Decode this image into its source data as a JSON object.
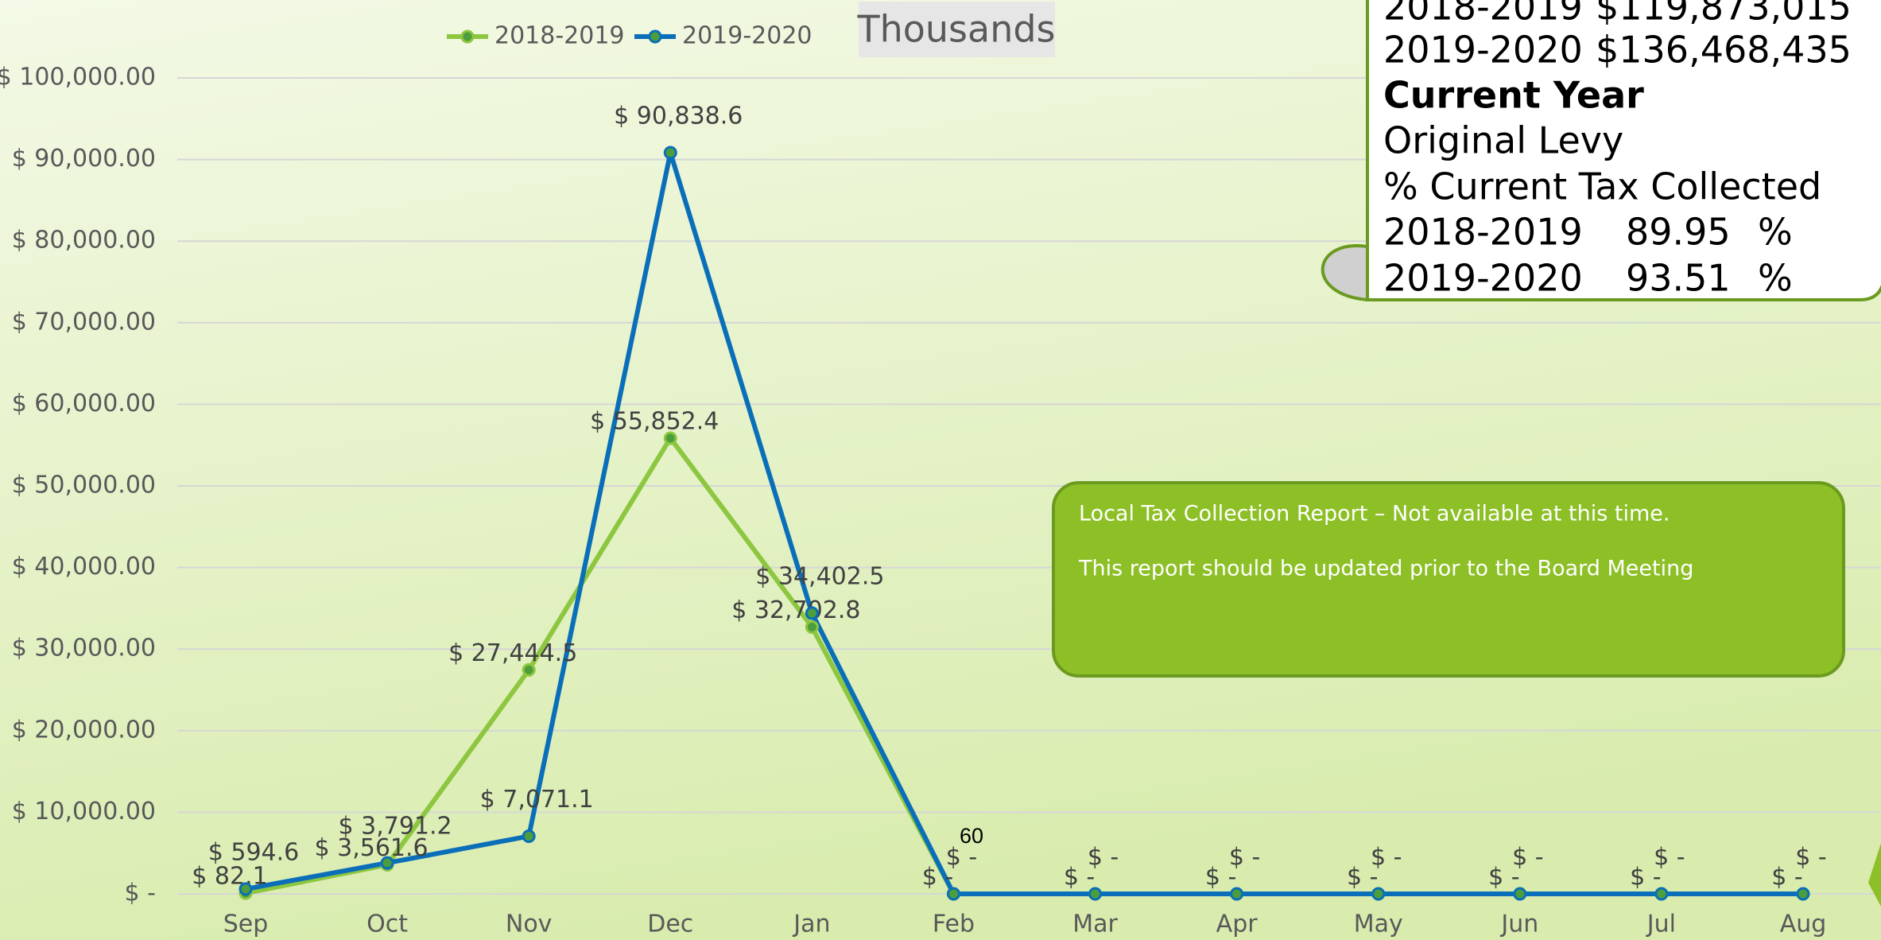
{
  "chart_data": {
    "type": "line",
    "categories": [
      "Sep",
      "Oct",
      "Nov",
      "Dec",
      "Jan",
      "Feb",
      "Mar",
      "Apr",
      "May",
      "Jun",
      "Jul",
      "Aug"
    ],
    "series": [
      {
        "name": "2018-2019",
        "color": "#8dc63f",
        "values": [
          82.1,
          3561.6,
          27444.5,
          55852.4,
          32702.8,
          0,
          0,
          0,
          0,
          0,
          0,
          0
        ],
        "value_labels": [
          "$ 82.1",
          "$ 3,561.6",
          "$ 27,444.5",
          "$ 55,852.4",
          "$ 32,702.8",
          "$ -",
          "$ -",
          "$ -",
          "$ -",
          "$ -",
          "$ -",
          "$ -"
        ]
      },
      {
        "name": "2019-2020",
        "color": "#0a6fb8",
        "values": [
          594.6,
          3791.2,
          7071.1,
          90838.6,
          34402.5,
          0,
          0,
          0,
          0,
          0,
          0,
          0
        ],
        "value_labels": [
          "$ 594.6",
          "$ 3,791.2",
          "$ 7,071.1",
          "$ 90,838.6",
          "$ 34,402.5",
          "$ -",
          "$ -",
          "$ -",
          "$ -",
          "$ -",
          "$ -",
          "$ -"
        ]
      }
    ],
    "ylim": [
      0,
      100000
    ],
    "yticks": [
      {
        "value": 0,
        "label": "$ -"
      },
      {
        "value": 10000,
        "label": "$ 10,000.00"
      },
      {
        "value": 20000,
        "label": "$ 20,000.00"
      },
      {
        "value": 30000,
        "label": "$ 30,000.00"
      },
      {
        "value": 40000,
        "label": "$ 40,000.00"
      },
      {
        "value": 50000,
        "label": "$ 50,000.00"
      },
      {
        "value": 60000,
        "label": "$ 60,000.00"
      },
      {
        "value": 70000,
        "label": "$ 70,000.00"
      },
      {
        "value": 80000,
        "label": "$ 80,000.00"
      },
      {
        "value": 90000,
        "label": "$ 90,000.00"
      },
      {
        "value": 100000,
        "label": "$ 100,000.00"
      }
    ],
    "grid": true,
    "legend": "top",
    "unit_label": "Thousands",
    "annotations": [
      "60"
    ]
  },
  "info_box": {
    "rows": [
      {
        "label": "2018-2019",
        "value": "$119,873,015"
      },
      {
        "label": "2019-2020",
        "value": "$136,468,435"
      },
      {
        "label": "Current Year"
      },
      {
        "label": "Original Levy"
      },
      {
        "label": "% Current Tax Collected"
      },
      {
        "label": "2018-2019",
        "value": "89.95",
        "unit": "%"
      },
      {
        "label": "2019-2020",
        "value": "93.51",
        "unit": "%"
      }
    ]
  },
  "notice": {
    "lines": [
      "Local Tax Collection Report – Not available at this time.",
      "This report should be updated prior to the Board Meeting"
    ]
  }
}
